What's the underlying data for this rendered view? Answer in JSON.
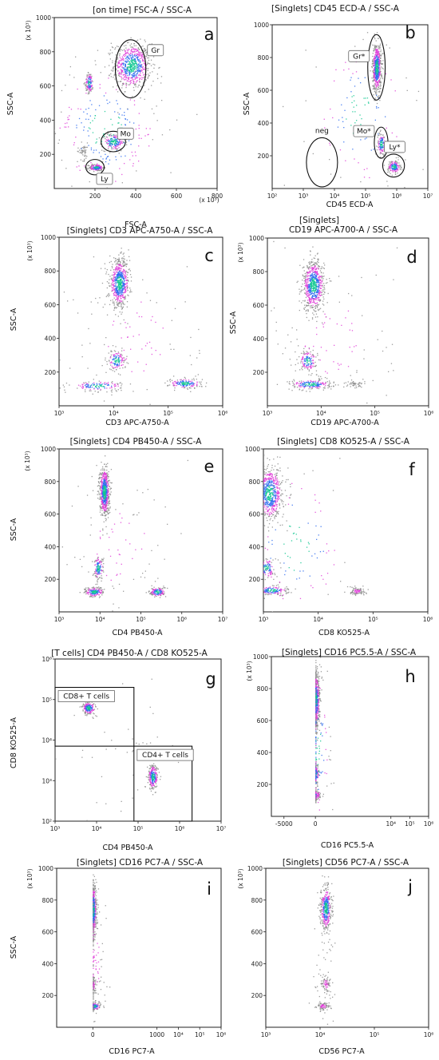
{
  "chart_data": [
    {
      "panel": "a",
      "type": "scatter",
      "title": "[on time] FSC-A / SSC-A",
      "xlabel": "FSC-A",
      "ylabel": "SSC-A",
      "x_scale": "linear",
      "y_scale": "linear",
      "xlim": [
        0,
        800
      ],
      "ylim": [
        0,
        1000
      ],
      "x_ticks": [
        "200",
        "400",
        "600",
        "800"
      ],
      "y_ticks": [
        "200",
        "400",
        "600",
        "800",
        "1000"
      ],
      "x_unit": "(x 10³)",
      "y_unit": "(x 10³)",
      "populations": [
        {
          "x": 380,
          "y": 720,
          "sx": 45,
          "sy": 65,
          "n": 700
        },
        {
          "x": 290,
          "y": 275,
          "sx": 28,
          "sy": 25,
          "n": 180
        },
        {
          "x": 205,
          "y": 125,
          "sx": 18,
          "sy": 10,
          "n": 160
        },
        {
          "x": 170,
          "y": 620,
          "sx": 10,
          "sy": 30,
          "n": 130
        },
        {
          "x": 140,
          "y": 220,
          "sx": 14,
          "sy": 25,
          "n": 50
        },
        {
          "x": 250,
          "y": 350,
          "sx": 140,
          "sy": 200,
          "n": 250
        }
      ],
      "gates": [
        {
          "label": "Gr",
          "shape": "ellipse",
          "x": 375,
          "y": 700,
          "rx": 75,
          "ry": 170
        },
        {
          "label": "Mo",
          "shape": "ellipse",
          "x": 290,
          "y": 275,
          "rx": 60,
          "ry": 60
        },
        {
          "label": "Ly",
          "shape": "ellipse",
          "x": 200,
          "y": 125,
          "rx": 45,
          "ry": 45
        }
      ]
    },
    {
      "panel": "b",
      "type": "scatter",
      "title": "[Singlets] CD45 ECD-A / SSC-A",
      "xlabel": "CD45 ECD-A",
      "ylabel": "SSC-A",
      "x_scale": "log",
      "y_scale": "linear",
      "xlim": [
        2,
        7
      ],
      "ylim": [
        0,
        1000
      ],
      "x_ticks": [
        "10²",
        "10³",
        "10⁴",
        "10⁵",
        "10⁶",
        "10⁷"
      ],
      "y_ticks": [
        "200",
        "400",
        "600",
        "800",
        "1000"
      ],
      "y_unit": "(x 10³)",
      "populations": [
        {
          "x": 5.35,
          "y": 740,
          "sx": 0.07,
          "sy": 75,
          "n": 620
        },
        {
          "x": 5.5,
          "y": 275,
          "sx": 0.07,
          "sy": 35,
          "n": 120
        },
        {
          "x": 5.9,
          "y": 135,
          "sx": 0.1,
          "sy": 20,
          "n": 160
        },
        {
          "x": 4.8,
          "y": 450,
          "sx": 0.8,
          "sy": 250,
          "n": 120
        }
      ],
      "gates": [
        {
          "label": "Gr*",
          "shape": "ellipse",
          "x": 5.35,
          "y": 740,
          "rx": 0.28,
          "ry": 200
        },
        {
          "label": "Mo*",
          "shape": "ellipse",
          "x": 5.5,
          "y": 280,
          "rx": 0.22,
          "ry": 95
        },
        {
          "label": "Ly*",
          "shape": "ellipse",
          "x": 5.9,
          "y": 140,
          "rx": 0.35,
          "ry": 70
        },
        {
          "label": "neg",
          "shape": "ellipse",
          "x": 3.6,
          "y": 160,
          "rx": 0.5,
          "ry": 150
        }
      ]
    },
    {
      "panel": "c",
      "type": "scatter",
      "title": "[Singlets] CD3 APC-A750-A / SSC-A",
      "xlabel": "CD3 APC-A750-A",
      "ylabel": "SSC-A",
      "x_scale": "log",
      "y_scale": "linear",
      "xlim": [
        3,
        6
      ],
      "ylim": [
        0,
        1000
      ],
      "x_ticks": [
        "10³",
        "10⁴",
        "10⁵",
        "10⁶"
      ],
      "y_ticks": [
        "200",
        "400",
        "600",
        "800",
        "1000"
      ],
      "y_unit": "(x 10³)",
      "populations": [
        {
          "x": 4.1,
          "y": 730,
          "sx": 0.09,
          "sy": 70,
          "n": 650
        },
        {
          "x": 4.05,
          "y": 270,
          "sx": 0.08,
          "sy": 30,
          "n": 140
        },
        {
          "x": 3.7,
          "y": 120,
          "sx": 0.25,
          "sy": 15,
          "n": 140
        },
        {
          "x": 5.3,
          "y": 135,
          "sx": 0.15,
          "sy": 15,
          "n": 160
        },
        {
          "x": 4.4,
          "y": 400,
          "sx": 0.6,
          "sy": 250,
          "n": 100
        }
      ],
      "gates": []
    },
    {
      "panel": "d",
      "type": "scatter",
      "title": "CD19 APC-A700-A / SSC-A",
      "title_prefix": "[Singlets]",
      "xlabel": "CD19 APC-A700-A",
      "ylabel": "SSC-A",
      "x_scale": "log",
      "y_scale": "linear",
      "xlim": [
        3,
        6
      ],
      "ylim": [
        0,
        1000
      ],
      "x_ticks": [
        "10³",
        "10⁴",
        "10⁵",
        "10⁶"
      ],
      "y_ticks": [
        "200",
        "400",
        "600",
        "800",
        "1000"
      ],
      "y_unit": "(x 10³)",
      "populations": [
        {
          "x": 3.85,
          "y": 720,
          "sx": 0.1,
          "sy": 75,
          "n": 700
        },
        {
          "x": 3.75,
          "y": 270,
          "sx": 0.08,
          "sy": 30,
          "n": 150
        },
        {
          "x": 3.8,
          "y": 130,
          "sx": 0.2,
          "sy": 15,
          "n": 200
        },
        {
          "x": 4.6,
          "y": 130,
          "sx": 0.1,
          "sy": 12,
          "n": 50
        },
        {
          "x": 4.2,
          "y": 400,
          "sx": 0.6,
          "sy": 250,
          "n": 100
        }
      ],
      "gates": []
    },
    {
      "panel": "e",
      "type": "scatter",
      "title": "[Singlets] CD4 PB450-A / SSC-A",
      "xlabel": "CD4 PB450-A",
      "ylabel": "SSC-A",
      "x_scale": "log",
      "y_scale": "linear",
      "xlim": [
        3,
        7
      ],
      "ylim": [
        0,
        1000
      ],
      "x_ticks": [
        "10³",
        "10⁴",
        "10⁵",
        "10⁶",
        "10⁷"
      ],
      "y_ticks": [
        "200",
        "400",
        "600",
        "800",
        "1000"
      ],
      "y_unit": "(x 10³)",
      "populations": [
        {
          "x": 4.1,
          "y": 740,
          "sx": 0.06,
          "sy": 75,
          "n": 650
        },
        {
          "x": 3.95,
          "y": 270,
          "sx": 0.06,
          "sy": 35,
          "n": 130
        },
        {
          "x": 3.85,
          "y": 125,
          "sx": 0.12,
          "sy": 15,
          "n": 180
        },
        {
          "x": 5.4,
          "y": 125,
          "sx": 0.1,
          "sy": 15,
          "n": 140
        },
        {
          "x": 4.5,
          "y": 400,
          "sx": 0.7,
          "sy": 250,
          "n": 100
        }
      ],
      "gates": []
    },
    {
      "panel": "f",
      "type": "scatter",
      "title": "[Singlets] CD8 KO525-A / SSC-A",
      "xlabel": "CD8 KO525-A",
      "ylabel": "SSC-A",
      "x_scale": "log",
      "y_scale": "linear",
      "xlim": [
        3,
        6
      ],
      "ylim": [
        0,
        1000
      ],
      "x_ticks": [
        "10³",
        "10⁴",
        "10⁵",
        "10⁶"
      ],
      "y_ticks": [
        "200",
        "400",
        "600",
        "800",
        "1000"
      ],
      "y_unit": "(x 10³)",
      "populations": [
        {
          "x": 3.1,
          "y": 730,
          "sx": 0.12,
          "sy": 80,
          "n": 700
        },
        {
          "x": 3.05,
          "y": 270,
          "sx": 0.08,
          "sy": 30,
          "n": 130
        },
        {
          "x": 3.15,
          "y": 135,
          "sx": 0.15,
          "sy": 15,
          "n": 170
        },
        {
          "x": 4.7,
          "y": 130,
          "sx": 0.08,
          "sy": 12,
          "n": 90
        },
        {
          "x": 3.6,
          "y": 400,
          "sx": 0.5,
          "sy": 250,
          "n": 120
        }
      ],
      "gates": []
    },
    {
      "panel": "g",
      "type": "scatter",
      "title": "[T cells] CD4 PB450-A / CD8 KO525-A",
      "xlabel": "CD4 PB450-A",
      "ylabel": "CD8 KO525-A",
      "x_scale": "log",
      "y_scale": "log",
      "xlim": [
        3,
        7
      ],
      "ylim": [
        2,
        6
      ],
      "x_ticks": [
        "10³",
        "10⁴",
        "10⁵",
        "10⁶",
        "10⁷"
      ],
      "y_ticks": [
        "10²",
        "10³",
        "10⁴",
        "10⁵",
        "10⁶"
      ],
      "populations": [
        {
          "x": 3.8,
          "y": 4.8,
          "sx": 0.08,
          "sy": 0.08,
          "n": 200
        },
        {
          "x": 5.35,
          "y": 3.1,
          "sx": 0.06,
          "sy": 0.15,
          "n": 250
        },
        {
          "x": 4.5,
          "y": 4.0,
          "sx": 0.8,
          "sy": 0.8,
          "n": 40
        }
      ],
      "gates": [
        {
          "label": "CD8+ T cells",
          "shape": "rect",
          "x0": 3,
          "x1": 4.9,
          "y0": 3.85,
          "y1": 5.3
        },
        {
          "label": "CD4+ T cells",
          "shape": "rect",
          "x0": 4.9,
          "x1": 6.3,
          "y0": 2,
          "y1": 3.85
        }
      ]
    },
    {
      "panel": "h",
      "type": "scatter",
      "title": "[Singlets] CD16 PC5.5-A / SSC-A",
      "xlabel": "CD16 PC5.5-A",
      "ylabel": "",
      "x_scale": "biexponential",
      "y_scale": "linear",
      "xlim": [
        -7000,
        6
      ],
      "ylim": [
        0,
        1000
      ],
      "x_ticks": [
        "-5000",
        "0",
        "10⁴",
        "10⁵",
        "10⁶"
      ],
      "y_ticks": [
        "200",
        "400",
        "600",
        "800",
        "1000"
      ],
      "y_unit": "(x 10³)",
      "populations": [
        {
          "x": 0.0,
          "y": 730,
          "sx": 0.1,
          "sy": 85,
          "n": 700
        },
        {
          "x": 0.0,
          "y": 265,
          "sx": 0.08,
          "sy": 30,
          "n": 130
        },
        {
          "x": -0.15,
          "y": 135,
          "sx": 0.2,
          "sy": 15,
          "n": 230
        },
        {
          "x": 0.1,
          "y": 420,
          "sx": 0.35,
          "sy": 250,
          "n": 120
        }
      ],
      "gates": []
    },
    {
      "panel": "i",
      "type": "scatter",
      "title": "[Singlets] CD16 PC7-A / SSC-A",
      "xlabel": "CD16 PC7-A",
      "ylabel": "SSC-A",
      "x_scale": "biexponential",
      "y_scale": "linear",
      "xlim": [
        -1000,
        6
      ],
      "ylim": [
        0,
        1000
      ],
      "x_ticks": [
        "0",
        "1000",
        "10⁴",
        "10⁵",
        "10⁶"
      ],
      "y_ticks": [
        "200",
        "400",
        "600",
        "800",
        "1000"
      ],
      "y_unit": "(x 10³)",
      "populations": [
        {
          "x": 0.0,
          "y": 740,
          "sx": 0.08,
          "sy": 80,
          "n": 500
        },
        {
          "x": 0.0,
          "y": 270,
          "sx": 0.06,
          "sy": 30,
          "n": 80
        },
        {
          "x": 0.05,
          "y": 135,
          "sx": 0.15,
          "sy": 12,
          "n": 140
        },
        {
          "x": 0.05,
          "y": 450,
          "sx": 0.3,
          "sy": 250,
          "n": 100
        }
      ],
      "gates": []
    },
    {
      "panel": "j",
      "type": "scatter",
      "title": "[Singlets] CD56 PC7-A / SSC-A",
      "xlabel": "CD56 PC7-A",
      "ylabel": "",
      "x_scale": "log",
      "y_scale": "linear",
      "xlim": [
        3,
        6
      ],
      "ylim": [
        0,
        1000
      ],
      "x_ticks": [
        "10³",
        "10⁴",
        "10⁵",
        "10⁶"
      ],
      "y_ticks": [
        "200",
        "400",
        "600",
        "800",
        "1000"
      ],
      "y_unit": "(x 10³)",
      "populations": [
        {
          "x": 4.1,
          "y": 750,
          "sx": 0.05,
          "sy": 70,
          "n": 400
        },
        {
          "x": 4.1,
          "y": 275,
          "sx": 0.05,
          "sy": 30,
          "n": 70
        },
        {
          "x": 4.05,
          "y": 135,
          "sx": 0.06,
          "sy": 12,
          "n": 90
        },
        {
          "x": 4.1,
          "y": 450,
          "sx": 0.12,
          "sy": 250,
          "n": 60
        }
      ],
      "gates": []
    }
  ],
  "colors": {
    "dot_low": "#8c8c8c",
    "dot_mid": "#e040d8",
    "dot_high": "#2e6cf0",
    "dot_peak": "#10c890",
    "axis": "#222222"
  }
}
